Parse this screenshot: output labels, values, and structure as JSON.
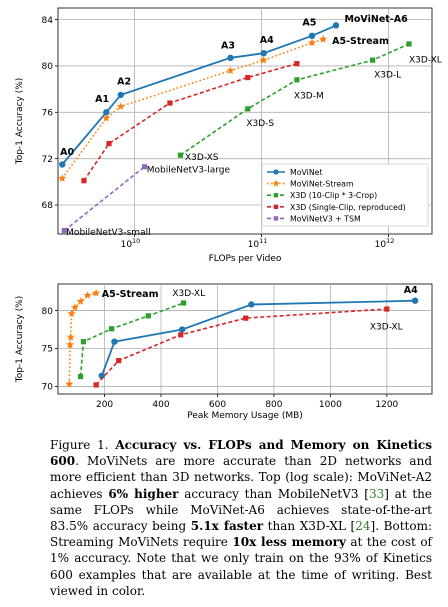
{
  "chart_data": [
    {
      "type": "line",
      "xlabel": "FLOPs per Video",
      "ylabel": "Top-1 Accuracy (%)",
      "xscale": "log",
      "xlim": [
        2500000000.0,
        2200000000000.0
      ],
      "ylim": [
        65.5,
        85.0
      ],
      "xticks": [
        {
          "value": 10000000000.0,
          "label": "10",
          "exp": "10"
        },
        {
          "value": 100000000000.0,
          "label": "10",
          "exp": "11"
        },
        {
          "value": 1000000000000.0,
          "label": "10",
          "exp": "12"
        }
      ],
      "yticks": [
        68,
        72,
        76,
        80,
        84
      ],
      "legend_position": "lower-right",
      "series": [
        {
          "name": "MoViNet",
          "color": "#1f77b4",
          "style": "solid",
          "marker": "circle",
          "x": [
            2700000000.0,
            6000000000.0,
            7800000000.0,
            57000000000.0,
            104000000000.0,
            250000000000.0,
            386000000000.0
          ],
          "y": [
            71.5,
            76.0,
            77.5,
            80.7,
            81.1,
            82.6,
            83.5
          ]
        },
        {
          "name": "MoViNet-Stream",
          "color": "#ff7f0e",
          "style": "dotted",
          "marker": "star",
          "x": [
            2700000000.0,
            6000000000.0,
            7800000000.0,
            57000000000.0,
            104000000000.0,
            250000000000.0,
            306000000000.0
          ],
          "y": [
            70.3,
            75.5,
            76.5,
            79.6,
            80.5,
            82.0,
            82.3
          ]
        },
        {
          "name": "X3D (10-Clip * 3-Crop)",
          "color": "#2ca02c",
          "style": "dashed",
          "marker": "square",
          "x": [
            23000000000.0,
            78000000000.0,
            190000000000.0,
            750000000000.0,
            1450000000000.0
          ],
          "y": [
            72.3,
            76.3,
            78.8,
            80.5,
            81.9
          ]
        },
        {
          "name": "X3D (Single-Clip, reproduced)",
          "color": "#d62728",
          "style": "dashed",
          "marker": "square",
          "x": [
            4000000000.0,
            6300000000.0,
            19000000000.0,
            78000000000.0,
            190000000000.0
          ],
          "y": [
            70.1,
            73.3,
            76.8,
            79.0,
            80.2
          ]
        },
        {
          "name": "MoViNetV3 + TSM",
          "color": "#9467bd",
          "style": "dashed",
          "marker": "square",
          "x": [
            2800000000.0,
            12000000000.0
          ],
          "y": [
            65.8,
            71.3
          ]
        }
      ],
      "annotations": [
        {
          "text": "A0",
          "x": 2600000000.0,
          "y": 72.3,
          "bold": true
        },
        {
          "text": "A1",
          "x": 4900000000.0,
          "y": 76.9,
          "bold": true
        },
        {
          "text": "A2",
          "x": 7300000000.0,
          "y": 78.4,
          "bold": true
        },
        {
          "text": "A3",
          "x": 48000000000.0,
          "y": 81.5,
          "bold": true
        },
        {
          "text": "A4",
          "x": 97000000000.0,
          "y": 82.0,
          "bold": true
        },
        {
          "text": "A5",
          "x": 210000000000.0,
          "y": 83.5,
          "bold": true
        },
        {
          "text": "MoViNet-A6",
          "x": 450000000000.0,
          "y": 83.8,
          "bold": true
        },
        {
          "text": "A5-Stream",
          "x": 360000000000.0,
          "y": 81.9,
          "bold": true
        },
        {
          "text": "X3D-XL",
          "x": 1450000000000.0,
          "y": 80.3,
          "bold": false
        },
        {
          "text": "X3D-L",
          "x": 770000000000.0,
          "y": 79.0,
          "bold": false
        },
        {
          "text": "X3D-M",
          "x": 180000000000.0,
          "y": 77.2,
          "bold": false
        },
        {
          "text": "X3D-S",
          "x": 76000000000.0,
          "y": 74.8,
          "bold": false
        },
        {
          "text": "X3D-XS",
          "x": 25000000000.0,
          "y": 71.9,
          "bold": false
        },
        {
          "text": "MobileNetV3-large",
          "x": 12500000000.0,
          "y": 70.8,
          "bold": false
        },
        {
          "text": "MobileNetV3-small",
          "x": 2900000000.0,
          "y": 65.4,
          "bold": false
        }
      ]
    },
    {
      "type": "line",
      "xlabel": "Peak Memory Usage (MB)",
      "ylabel": "Top-1 Accuracy (%)",
      "xlim": [
        35,
        1360
      ],
      "ylim": [
        69.0,
        83.5
      ],
      "xticks": [
        200,
        400,
        600,
        800,
        1000,
        1200
      ],
      "yticks": [
        70,
        75,
        80
      ],
      "series": [
        {
          "name": "MoViNet",
          "color": "#1f77b4",
          "style": "solid",
          "marker": "circle",
          "x": [
            190,
            235,
            475,
            720,
            1300
          ],
          "y": [
            71.4,
            75.9,
            77.5,
            80.8,
            81.3
          ]
        },
        {
          "name": "MoViNet-Stream",
          "color": "#ff7f0e",
          "style": "dotted",
          "marker": "star",
          "x": [
            75,
            78,
            80,
            83,
            95,
            115,
            140,
            170
          ],
          "y": [
            70.3,
            75.5,
            76.5,
            79.6,
            80.4,
            81.2,
            82.0,
            82.3
          ]
        },
        {
          "name": "X3D (10-Clip * 3-Crop)",
          "color": "#2ca02c",
          "style": "dashed",
          "marker": "square",
          "x": [
            115,
            125,
            225,
            355,
            480
          ],
          "y": [
            71.3,
            75.9,
            77.6,
            79.3,
            81.0
          ]
        },
        {
          "name": "X3D (Single-Clip, reproduced)",
          "color": "#d62728",
          "style": "dashed",
          "marker": "square",
          "x": [
            170,
            250,
            470,
            700,
            1200
          ],
          "y": [
            70.2,
            73.4,
            76.8,
            79.0,
            80.2
          ]
        }
      ],
      "annotations": [
        {
          "text": "A5-Stream",
          "x": 190,
          "y": 81.8,
          "bold": true
        },
        {
          "text": "X3D-XL",
          "x": 440,
          "y": 81.9,
          "bold": false
        },
        {
          "text": "A4",
          "x": 1260,
          "y": 82.3,
          "bold": true
        },
        {
          "text": "X3D-XL",
          "x": 1140,
          "y": 77.5,
          "bold": false
        }
      ]
    }
  ],
  "caption": {
    "label": "Figure 1.",
    "bold_title": "Accuracy vs. FLOPs and Memory on Kinetics 600",
    "s1": ". MoViNets are more accurate than 2D networks and more efficient than 3D networks. Top (log scale): MoViNet-A2 achieves ",
    "b1": "6% higher",
    "s2": " accuracy than MobileNetV3 [",
    "c1": "33",
    "s3": "] at the same FLOPs while MoViNet-A6 achieves state-of-the-art 83.5% accuracy being ",
    "b2": "5.1x faster",
    "s4": " than X3D-XL [",
    "c2": "24",
    "s5": "]. Bottom: Streaming MoViNets require ",
    "b3": "10x less memory",
    "s6": " at the cost of 1% accuracy. Note that we only train on the  93% of Kinetics 600 examples that are available at the time of writing. Best viewed in color."
  }
}
